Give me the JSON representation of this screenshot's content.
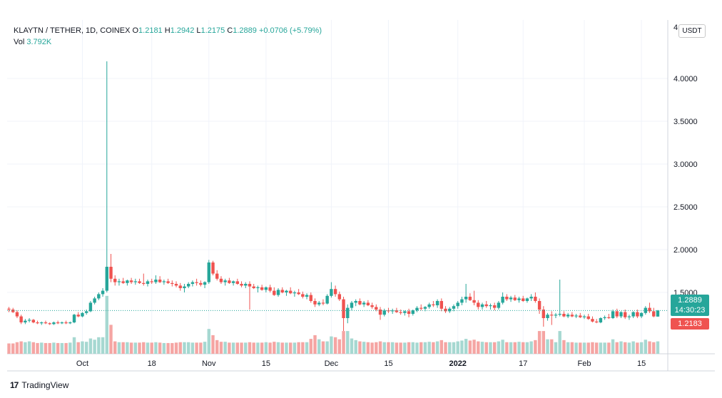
{
  "legend": {
    "symbol": "KLAYTN / TETHER, 1D, COINEX",
    "o_label": "O",
    "o_value": "1.2181",
    "h_label": "H",
    "h_value": "1.2942",
    "l_label": "L",
    "l_value": "1.2175",
    "c_label": "C",
    "c_value": "1.2889",
    "change": "+0.0706 (+5.79%)",
    "vol_label": "Vol",
    "vol_value": "3.792K"
  },
  "price_axis": {
    "unit": "USDT",
    "top_clip_label": "4",
    "current_price": "1.2889",
    "countdown": "14:30:23",
    "previous_close": "1.2183"
  },
  "brand": {
    "logo_text": "17",
    "name": "TradingView"
  },
  "colors": {
    "up": "#26a69a",
    "down": "#ef5350",
    "up_vol": "#a6d8d1",
    "down_vol": "#f5a5a3",
    "grid": "#f0f3fa"
  },
  "chart_data": {
    "type": "candlestick",
    "ylim": [
      0.85,
      4.35
    ],
    "y_ticks": [
      1.5,
      2.0,
      2.5,
      3.0,
      3.5,
      4.0
    ],
    "y_tick_labels": [
      "1.5000",
      "2.0000",
      "2.5000",
      "3.0000",
      "3.5000",
      "4.0000"
    ],
    "x_ticks": [
      {
        "i": 18,
        "label": "Oct"
      },
      {
        "i": 35,
        "label": "18"
      },
      {
        "i": 49,
        "label": "Nov"
      },
      {
        "i": 63,
        "label": "15"
      },
      {
        "i": 79,
        "label": "Dec"
      },
      {
        "i": 93,
        "label": "15"
      },
      {
        "i": 110,
        "label": "2022"
      },
      {
        "i": 126,
        "label": "17"
      },
      {
        "i": 141,
        "label": "Feb"
      },
      {
        "i": 155,
        "label": "15"
      }
    ],
    "candles": [
      [
        1.31,
        1.33,
        1.27,
        1.3
      ],
      [
        1.3,
        1.32,
        1.26,
        1.27
      ],
      [
        1.27,
        1.29,
        1.2,
        1.22
      ],
      [
        1.22,
        1.24,
        1.13,
        1.15
      ],
      [
        1.15,
        1.19,
        1.13,
        1.17
      ],
      [
        1.17,
        1.2,
        1.15,
        1.18
      ],
      [
        1.18,
        1.19,
        1.14,
        1.15
      ],
      [
        1.15,
        1.17,
        1.13,
        1.14
      ],
      [
        1.14,
        1.16,
        1.12,
        1.15
      ],
      [
        1.15,
        1.17,
        1.13,
        1.14
      ],
      [
        1.14,
        1.15,
        1.12,
        1.13
      ],
      [
        1.13,
        1.16,
        1.12,
        1.15
      ],
      [
        1.15,
        1.17,
        1.13,
        1.14
      ],
      [
        1.14,
        1.16,
        1.13,
        1.15
      ],
      [
        1.15,
        1.17,
        1.13,
        1.14
      ],
      [
        1.14,
        1.16,
        1.13,
        1.15
      ],
      [
        1.15,
        1.25,
        1.14,
        1.24
      ],
      [
        1.24,
        1.27,
        1.21,
        1.22
      ],
      [
        1.22,
        1.27,
        1.21,
        1.26
      ],
      [
        1.26,
        1.3,
        1.24,
        1.28
      ],
      [
        1.28,
        1.4,
        1.27,
        1.38
      ],
      [
        1.38,
        1.45,
        1.36,
        1.43
      ],
      [
        1.43,
        1.5,
        1.41,
        1.48
      ],
      [
        1.48,
        1.55,
        1.45,
        1.52
      ],
      [
        1.52,
        4.2,
        1.5,
        1.8
      ],
      [
        1.8,
        1.95,
        1.62,
        1.66
      ],
      [
        1.66,
        1.7,
        1.58,
        1.62
      ],
      [
        1.62,
        1.66,
        1.58,
        1.63
      ],
      [
        1.63,
        1.67,
        1.6,
        1.61
      ],
      [
        1.61,
        1.65,
        1.58,
        1.64
      ],
      [
        1.64,
        1.67,
        1.6,
        1.62
      ],
      [
        1.62,
        1.66,
        1.59,
        1.63
      ],
      [
        1.63,
        1.66,
        1.6,
        1.61
      ],
      [
        1.61,
        1.72,
        1.58,
        1.6
      ],
      [
        1.6,
        1.65,
        1.57,
        1.63
      ],
      [
        1.63,
        1.66,
        1.6,
        1.62
      ],
      [
        1.62,
        1.7,
        1.6,
        1.65
      ],
      [
        1.65,
        1.69,
        1.61,
        1.62
      ],
      [
        1.62,
        1.65,
        1.59,
        1.63
      ],
      [
        1.63,
        1.66,
        1.6,
        1.61
      ],
      [
        1.61,
        1.64,
        1.57,
        1.6
      ],
      [
        1.6,
        1.63,
        1.56,
        1.58
      ],
      [
        1.58,
        1.61,
        1.52,
        1.55
      ],
      [
        1.55,
        1.6,
        1.5,
        1.57
      ],
      [
        1.57,
        1.62,
        1.55,
        1.6
      ],
      [
        1.6,
        1.64,
        1.57,
        1.62
      ],
      [
        1.62,
        1.66,
        1.58,
        1.61
      ],
      [
        1.61,
        1.64,
        1.57,
        1.59
      ],
      [
        1.59,
        1.63,
        1.55,
        1.62
      ],
      [
        1.62,
        1.88,
        1.6,
        1.85
      ],
      [
        1.85,
        1.87,
        1.7,
        1.72
      ],
      [
        1.72,
        1.76,
        1.64,
        1.66
      ],
      [
        1.66,
        1.69,
        1.6,
        1.62
      ],
      [
        1.62,
        1.66,
        1.58,
        1.64
      ],
      [
        1.64,
        1.67,
        1.6,
        1.61
      ],
      [
        1.61,
        1.64,
        1.58,
        1.63
      ],
      [
        1.63,
        1.66,
        1.59,
        1.6
      ],
      [
        1.6,
        1.63,
        1.56,
        1.58
      ],
      [
        1.58,
        1.62,
        1.55,
        1.6
      ],
      [
        1.6,
        1.63,
        1.3,
        1.57
      ],
      [
        1.57,
        1.6,
        1.54,
        1.55
      ],
      [
        1.55,
        1.58,
        1.5,
        1.56
      ],
      [
        1.56,
        1.59,
        1.52,
        1.53
      ],
      [
        1.53,
        1.57,
        1.5,
        1.56
      ],
      [
        1.56,
        1.59,
        1.5,
        1.52
      ],
      [
        1.52,
        1.56,
        1.46,
        1.47
      ],
      [
        1.47,
        1.55,
        1.45,
        1.53
      ],
      [
        1.53,
        1.56,
        1.49,
        1.5
      ],
      [
        1.5,
        1.53,
        1.46,
        1.52
      ],
      [
        1.52,
        1.56,
        1.48,
        1.49
      ],
      [
        1.49,
        1.52,
        1.45,
        1.5
      ],
      [
        1.5,
        1.54,
        1.47,
        1.48
      ],
      [
        1.48,
        1.51,
        1.43,
        1.45
      ],
      [
        1.45,
        1.49,
        1.42,
        1.47
      ],
      [
        1.47,
        1.5,
        1.38,
        1.4
      ],
      [
        1.4,
        1.43,
        1.33,
        1.36
      ],
      [
        1.36,
        1.4,
        1.34,
        1.38
      ],
      [
        1.38,
        1.42,
        1.35,
        1.37
      ],
      [
        1.37,
        1.48,
        1.36,
        1.46
      ],
      [
        1.46,
        1.62,
        1.44,
        1.54
      ],
      [
        1.54,
        1.58,
        1.45,
        1.48
      ],
      [
        1.48,
        1.51,
        1.4,
        1.42
      ],
      [
        1.42,
        1.45,
        1.05,
        1.2
      ],
      [
        1.2,
        1.36,
        1.14,
        1.32
      ],
      [
        1.32,
        1.4,
        1.29,
        1.38
      ],
      [
        1.38,
        1.42,
        1.34,
        1.4
      ],
      [
        1.4,
        1.43,
        1.35,
        1.36
      ],
      [
        1.36,
        1.4,
        1.33,
        1.38
      ],
      [
        1.38,
        1.41,
        1.34,
        1.35
      ],
      [
        1.35,
        1.38,
        1.31,
        1.33
      ],
      [
        1.33,
        1.36,
        1.28,
        1.3
      ],
      [
        1.3,
        1.33,
        1.18,
        1.24
      ],
      [
        1.24,
        1.31,
        1.22,
        1.29
      ],
      [
        1.29,
        1.32,
        1.26,
        1.28
      ],
      [
        1.28,
        1.31,
        1.25,
        1.29
      ],
      [
        1.29,
        1.32,
        1.26,
        1.27
      ],
      [
        1.27,
        1.3,
        1.24,
        1.26
      ],
      [
        1.26,
        1.29,
        1.23,
        1.28
      ],
      [
        1.28,
        1.31,
        1.21,
        1.25
      ],
      [
        1.25,
        1.3,
        1.23,
        1.29
      ],
      [
        1.29,
        1.34,
        1.27,
        1.32
      ],
      [
        1.32,
        1.36,
        1.29,
        1.31
      ],
      [
        1.31,
        1.34,
        1.28,
        1.33
      ],
      [
        1.33,
        1.38,
        1.31,
        1.36
      ],
      [
        1.36,
        1.4,
        1.33,
        1.35
      ],
      [
        1.35,
        1.42,
        1.32,
        1.4
      ],
      [
        1.4,
        1.43,
        1.28,
        1.31
      ],
      [
        1.31,
        1.34,
        1.26,
        1.28
      ],
      [
        1.28,
        1.33,
        1.26,
        1.31
      ],
      [
        1.31,
        1.36,
        1.28,
        1.34
      ],
      [
        1.34,
        1.4,
        1.31,
        1.38
      ],
      [
        1.38,
        1.45,
        1.35,
        1.42
      ],
      [
        1.42,
        1.6,
        1.38,
        1.45
      ],
      [
        1.45,
        1.49,
        1.4,
        1.41
      ],
      [
        1.41,
        1.52,
        1.35,
        1.38
      ],
      [
        1.38,
        1.41,
        1.3,
        1.33
      ],
      [
        1.33,
        1.38,
        1.3,
        1.36
      ],
      [
        1.36,
        1.4,
        1.32,
        1.34
      ],
      [
        1.34,
        1.37,
        1.3,
        1.35
      ],
      [
        1.35,
        1.38,
        1.29,
        1.32
      ],
      [
        1.32,
        1.4,
        1.3,
        1.38
      ],
      [
        1.38,
        1.5,
        1.36,
        1.45
      ],
      [
        1.45,
        1.48,
        1.4,
        1.42
      ],
      [
        1.42,
        1.46,
        1.39,
        1.44
      ],
      [
        1.44,
        1.47,
        1.4,
        1.41
      ],
      [
        1.41,
        1.45,
        1.38,
        1.43
      ],
      [
        1.43,
        1.46,
        1.39,
        1.4
      ],
      [
        1.4,
        1.44,
        1.38,
        1.43
      ],
      [
        1.43,
        1.48,
        1.4,
        1.45
      ],
      [
        1.45,
        1.5,
        1.38,
        1.4
      ],
      [
        1.4,
        1.43,
        1.25,
        1.3
      ],
      [
        1.3,
        1.34,
        1.1,
        1.2
      ],
      [
        1.2,
        1.26,
        1.17,
        1.24
      ],
      [
        1.24,
        1.28,
        1.12,
        1.23
      ],
      [
        1.23,
        1.26,
        1.2,
        1.24
      ],
      [
        1.24,
        1.65,
        1.22,
        1.25
      ],
      [
        1.25,
        1.28,
        1.21,
        1.22
      ],
      [
        1.22,
        1.26,
        1.2,
        1.24
      ],
      [
        1.24,
        1.27,
        1.21,
        1.22
      ],
      [
        1.22,
        1.25,
        1.2,
        1.23
      ],
      [
        1.23,
        1.26,
        1.2,
        1.21
      ],
      [
        1.21,
        1.24,
        1.19,
        1.22
      ],
      [
        1.22,
        1.25,
        1.18,
        1.19
      ],
      [
        1.19,
        1.22,
        1.15,
        1.16
      ],
      [
        1.16,
        1.19,
        1.14,
        1.15
      ],
      [
        1.15,
        1.21,
        1.14,
        1.2
      ],
      [
        1.2,
        1.23,
        1.18,
        1.21
      ],
      [
        1.21,
        1.25,
        1.19,
        1.2
      ],
      [
        1.2,
        1.3,
        1.19,
        1.28
      ],
      [
        1.28,
        1.31,
        1.2,
        1.22
      ],
      [
        1.22,
        1.28,
        1.2,
        1.27
      ],
      [
        1.27,
        1.3,
        1.19,
        1.21
      ],
      [
        1.21,
        1.24,
        1.18,
        1.22
      ],
      [
        1.22,
        1.28,
        1.2,
        1.27
      ],
      [
        1.27,
        1.3,
        1.2,
        1.22
      ],
      [
        1.22,
        1.27,
        1.2,
        1.26
      ],
      [
        1.26,
        1.34,
        1.24,
        1.32
      ],
      [
        1.32,
        1.38,
        1.26,
        1.28
      ],
      [
        1.28,
        1.32,
        1.21,
        1.22
      ],
      [
        1.2181,
        1.2942,
        1.2175,
        1.2889
      ]
    ],
    "volume": [
      25,
      25,
      28,
      30,
      28,
      30,
      28,
      26,
      27,
      26,
      26,
      27,
      26,
      26,
      26,
      27,
      40,
      28,
      30,
      29,
      37,
      34,
      40,
      40,
      140,
      70,
      30,
      28,
      28,
      28,
      27,
      27,
      27,
      28,
      27,
      27,
      28,
      27,
      26,
      26,
      26,
      27,
      28,
      28,
      28,
      27,
      27,
      27,
      29,
      60,
      45,
      33,
      29,
      29,
      27,
      27,
      27,
      27,
      27,
      28,
      27,
      27,
      27,
      28,
      27,
      29,
      28,
      27,
      27,
      27,
      27,
      28,
      28,
      28,
      36,
      45,
      35,
      30,
      30,
      42,
      40,
      35,
      55,
      55,
      37,
      33,
      30,
      29,
      28,
      27,
      28,
      30,
      28,
      28,
      28,
      27,
      27,
      27,
      28,
      28,
      27,
      28,
      28,
      29,
      28,
      30,
      33,
      28,
      28,
      28,
      30,
      32,
      36,
      32,
      34,
      30,
      29,
      28,
      28,
      28,
      30,
      34,
      28,
      28,
      28,
      29,
      28,
      28,
      30,
      33,
      55,
      55,
      35,
      35,
      28,
      55,
      33,
      28,
      28,
      27,
      27,
      27,
      27,
      28,
      27,
      27,
      27,
      27,
      35,
      28,
      30,
      28,
      27,
      30,
      27,
      28,
      34,
      30,
      28,
      30
    ]
  }
}
